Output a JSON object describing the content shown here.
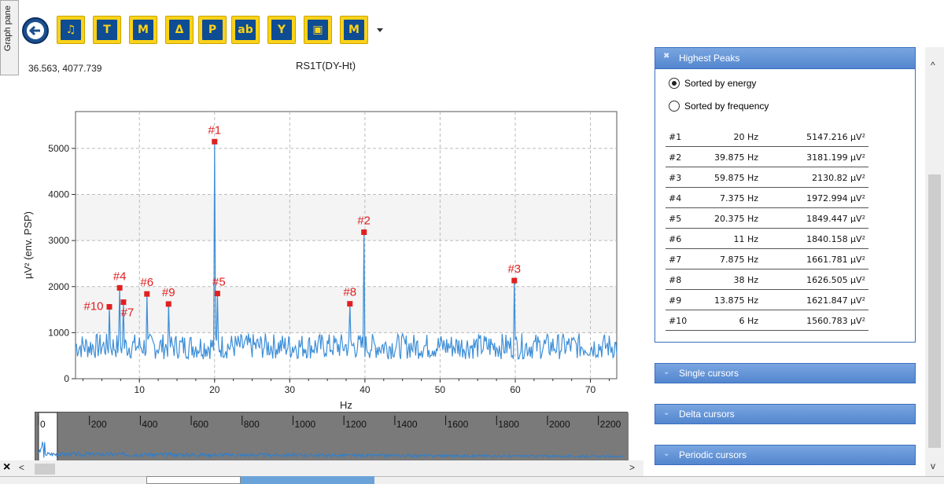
{
  "graph_pane_tab": "Graph pane",
  "coordinates_readout": "36.563, 4077.739",
  "plot_title": "RS1T(DY-Ht)",
  "toolbar": {
    "buttons": [
      {
        "name": "back-button",
        "glyph": "←"
      },
      {
        "name": "export-button",
        "glyph": "♫"
      },
      {
        "name": "time-cursor-button",
        "glyph": "T"
      },
      {
        "name": "marker-button",
        "glyph": "M"
      },
      {
        "name": "delta-button",
        "glyph": "Δ"
      },
      {
        "name": "peak-button",
        "glyph": "P"
      },
      {
        "name": "text-label-button",
        "glyph": "ab"
      },
      {
        "name": "y-axis-button",
        "glyph": "Y"
      },
      {
        "name": "save-button",
        "glyph": "▣"
      },
      {
        "name": "marker-clear-button",
        "glyph": "M"
      }
    ]
  },
  "chart_data": {
    "type": "line",
    "title": "RS1T(DY-Ht)",
    "xlabel": "Hz",
    "ylabel": "µV² (env. PSP)",
    "xlim": [
      1.5,
      73.5
    ],
    "ylim": [
      0,
      5800
    ],
    "xticks": [
      10,
      20,
      30,
      40,
      50,
      60,
      70
    ],
    "yticks": [
      0,
      1000,
      2000,
      3000,
      4000,
      5000
    ],
    "grid": true,
    "line_color": "#3e8fd8",
    "marker_color": "#e02020",
    "peaks": [
      {
        "label": "#1",
        "x": 20,
        "y": 5147.216
      },
      {
        "label": "#2",
        "x": 39.875,
        "y": 3181.199
      },
      {
        "label": "#3",
        "x": 59.875,
        "y": 2130.82
      },
      {
        "label": "#4",
        "x": 7.375,
        "y": 1972.994
      },
      {
        "label": "#5",
        "x": 20.375,
        "y": 1849.447
      },
      {
        "label": "#6",
        "x": 11,
        "y": 1840.158
      },
      {
        "label": "#7",
        "x": 7.875,
        "y": 1661.781
      },
      {
        "label": "#8",
        "x": 38,
        "y": 1626.505
      },
      {
        "label": "#9",
        "x": 13.875,
        "y": 1621.847
      },
      {
        "label": "#10",
        "x": 6,
        "y": 1560.783
      }
    ],
    "noise_baseline": 620,
    "noise_amplitude": 400
  },
  "overview_chart": {
    "xticks": [
      "0",
      "200",
      "400",
      "600",
      "800",
      "1000",
      "1200",
      "1400",
      "1600",
      "1800",
      "2000",
      "2200"
    ],
    "xmax": 2300,
    "window": [
      0,
      73.5
    ]
  },
  "peaks_panel": {
    "title": "Highest Peaks",
    "sort_options": [
      {
        "label": "Sorted by energy",
        "selected": true
      },
      {
        "label": "Sorted by frequency",
        "selected": false
      }
    ],
    "rows": [
      {
        "rank": "#1",
        "freq": "20 Hz",
        "value": "5147.216 µV²"
      },
      {
        "rank": "#2",
        "freq": "39.875 Hz",
        "value": "3181.199 µV²"
      },
      {
        "rank": "#3",
        "freq": "59.875 Hz",
        "value": "2130.82 µV²"
      },
      {
        "rank": "#4",
        "freq": "7.375 Hz",
        "value": "1972.994 µV²"
      },
      {
        "rank": "#5",
        "freq": "20.375 Hz",
        "value": "1849.447 µV²"
      },
      {
        "rank": "#6",
        "freq": "11 Hz",
        "value": "1840.158 µV²"
      },
      {
        "rank": "#7",
        "freq": "7.875 Hz",
        "value": "1661.781 µV²"
      },
      {
        "rank": "#8",
        "freq": "38 Hz",
        "value": "1626.505 µV²"
      },
      {
        "rank": "#9",
        "freq": "13.875 Hz",
        "value": "1621.847 µV²"
      },
      {
        "rank": "#10",
        "freq": "6 Hz",
        "value": "1560.783 µV²"
      }
    ]
  },
  "cursor_sections": [
    "Single cursors",
    "Delta cursors",
    "Periodic cursors"
  ],
  "scroll": {
    "left_glyph": "<",
    "right_glyph": ">",
    "up_glyph": "^",
    "down_glyph": "v",
    "close_glyph": "×"
  }
}
